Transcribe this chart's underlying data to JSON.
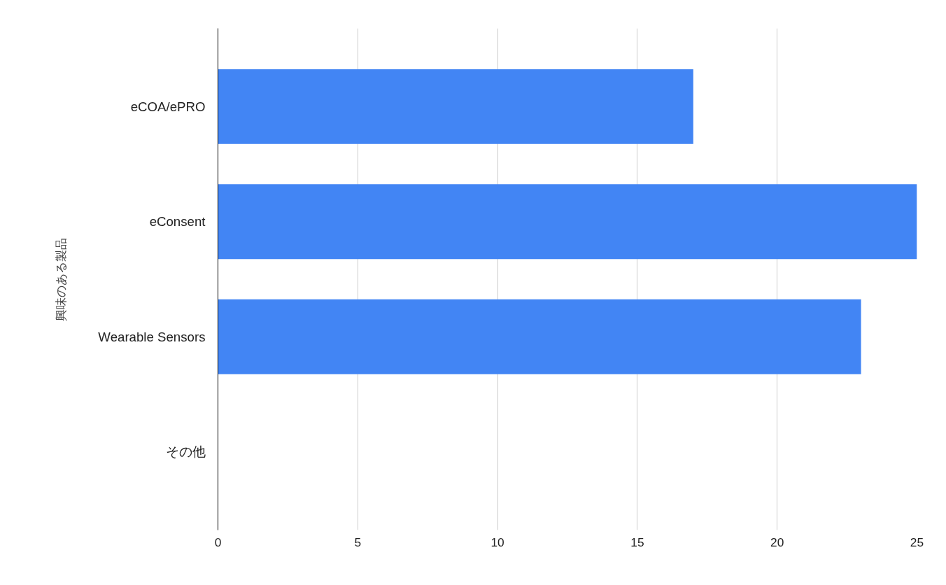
{
  "chart_data": {
    "type": "bar",
    "orientation": "horizontal",
    "ylabel": "興味のある製品",
    "categories": [
      "eCOA/ePRO",
      "eConsent",
      "Wearable Sensors",
      "その他"
    ],
    "values": [
      17,
      25,
      23,
      0
    ],
    "color": "#4285f4",
    "xlim": [
      0,
      25
    ],
    "xticks": [
      0,
      5,
      10,
      15,
      20,
      25
    ],
    "grid": "x"
  }
}
